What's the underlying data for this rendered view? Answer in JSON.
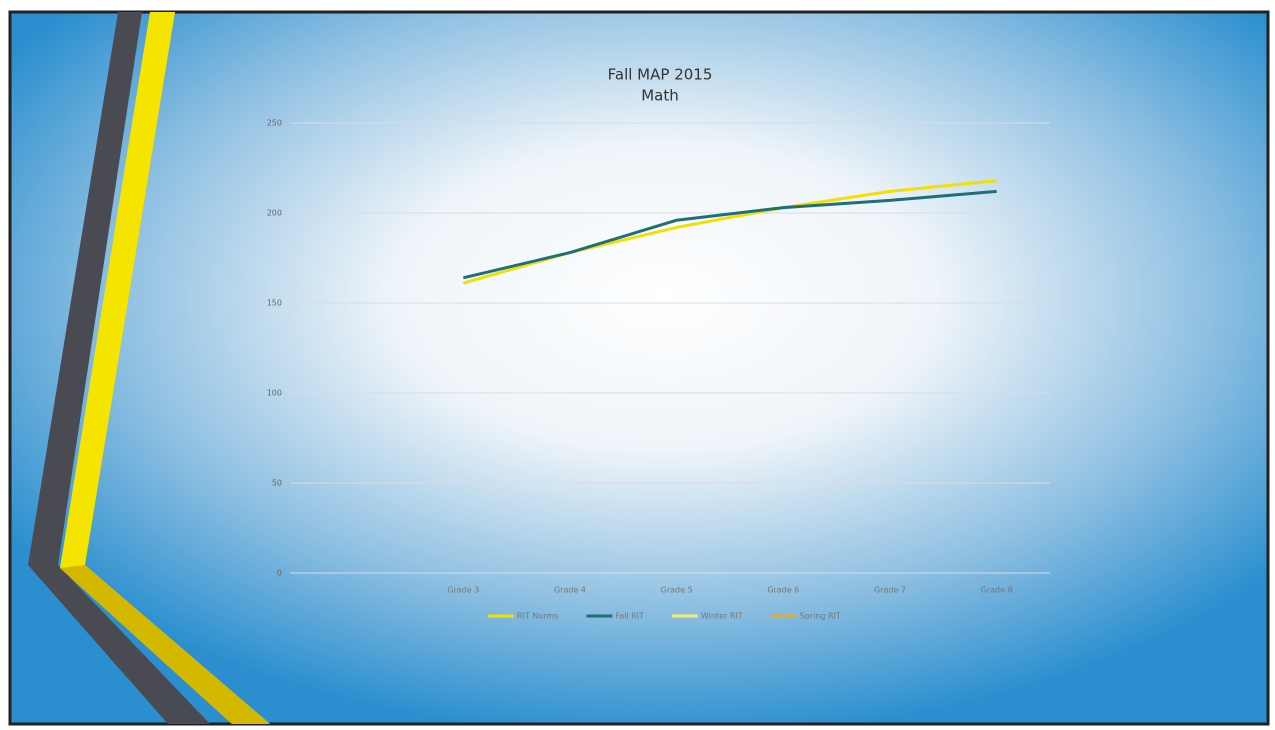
{
  "chart_data": {
    "type": "line",
    "title": "Fall MAP 2015",
    "subtitle": "Math",
    "categories": [
      "Grade 3",
      "Grade 4",
      "Grade 5",
      "Grade 6",
      "Grade 7",
      "Grade 8"
    ],
    "series": [
      {
        "name": "RIT Norms",
        "color": "#f2e000",
        "values": [
          161,
          178,
          192,
          203,
          212,
          218
        ]
      },
      {
        "name": "Fall RIT",
        "color": "#1f6f7a",
        "values": [
          164,
          178,
          196,
          203,
          207,
          212
        ]
      },
      {
        "name": "Winter RIT",
        "color": "#f5ee6a",
        "values": [
          null,
          null,
          null,
          null,
          null,
          null
        ]
      },
      {
        "name": "Spring RIT",
        "color": "#e8a83a",
        "values": [
          null,
          null,
          null,
          null,
          null,
          null
        ]
      }
    ],
    "ylim": [
      0,
      250
    ],
    "yticks": [
      0,
      50,
      100,
      150,
      200,
      250
    ],
    "grid": true
  }
}
